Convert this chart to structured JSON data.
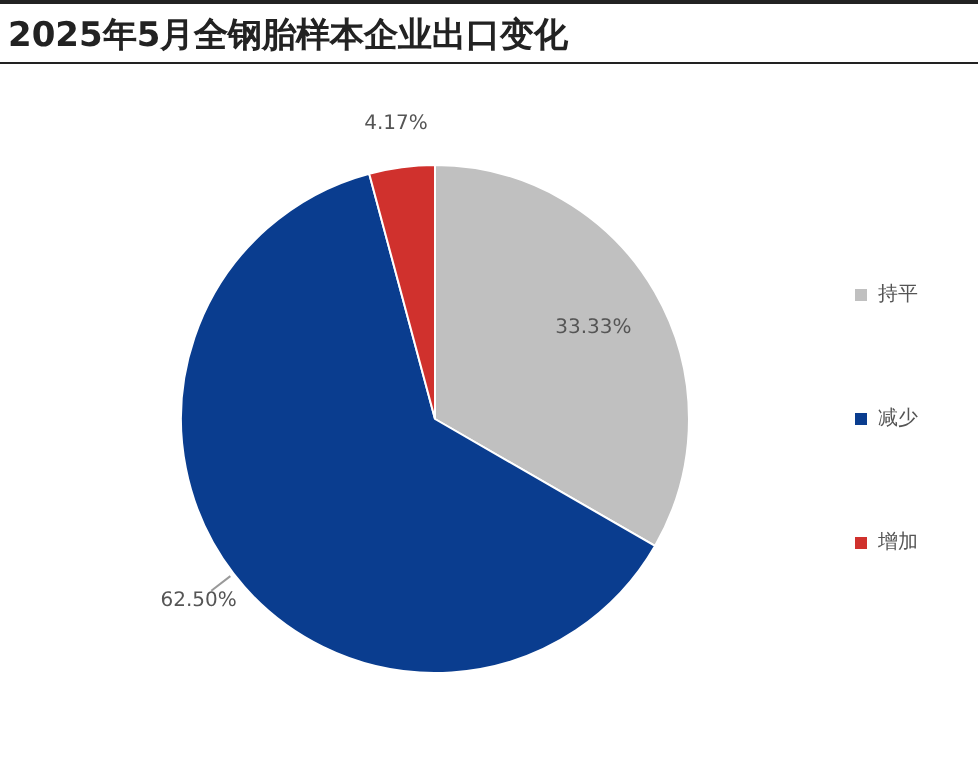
{
  "chart_data": {
    "type": "pie",
    "title": "2025年5月全钢胎样本企业出口变化",
    "categories": [
      "持平",
      "减少",
      "增加"
    ],
    "values": [
      33.33,
      62.5,
      4.17
    ],
    "colors": [
      "#c0c0c0",
      "#0a3d8f",
      "#d0312d"
    ],
    "value_labels": [
      "33.33%",
      "62.50%",
      "4.17%"
    ],
    "legend": "right"
  }
}
